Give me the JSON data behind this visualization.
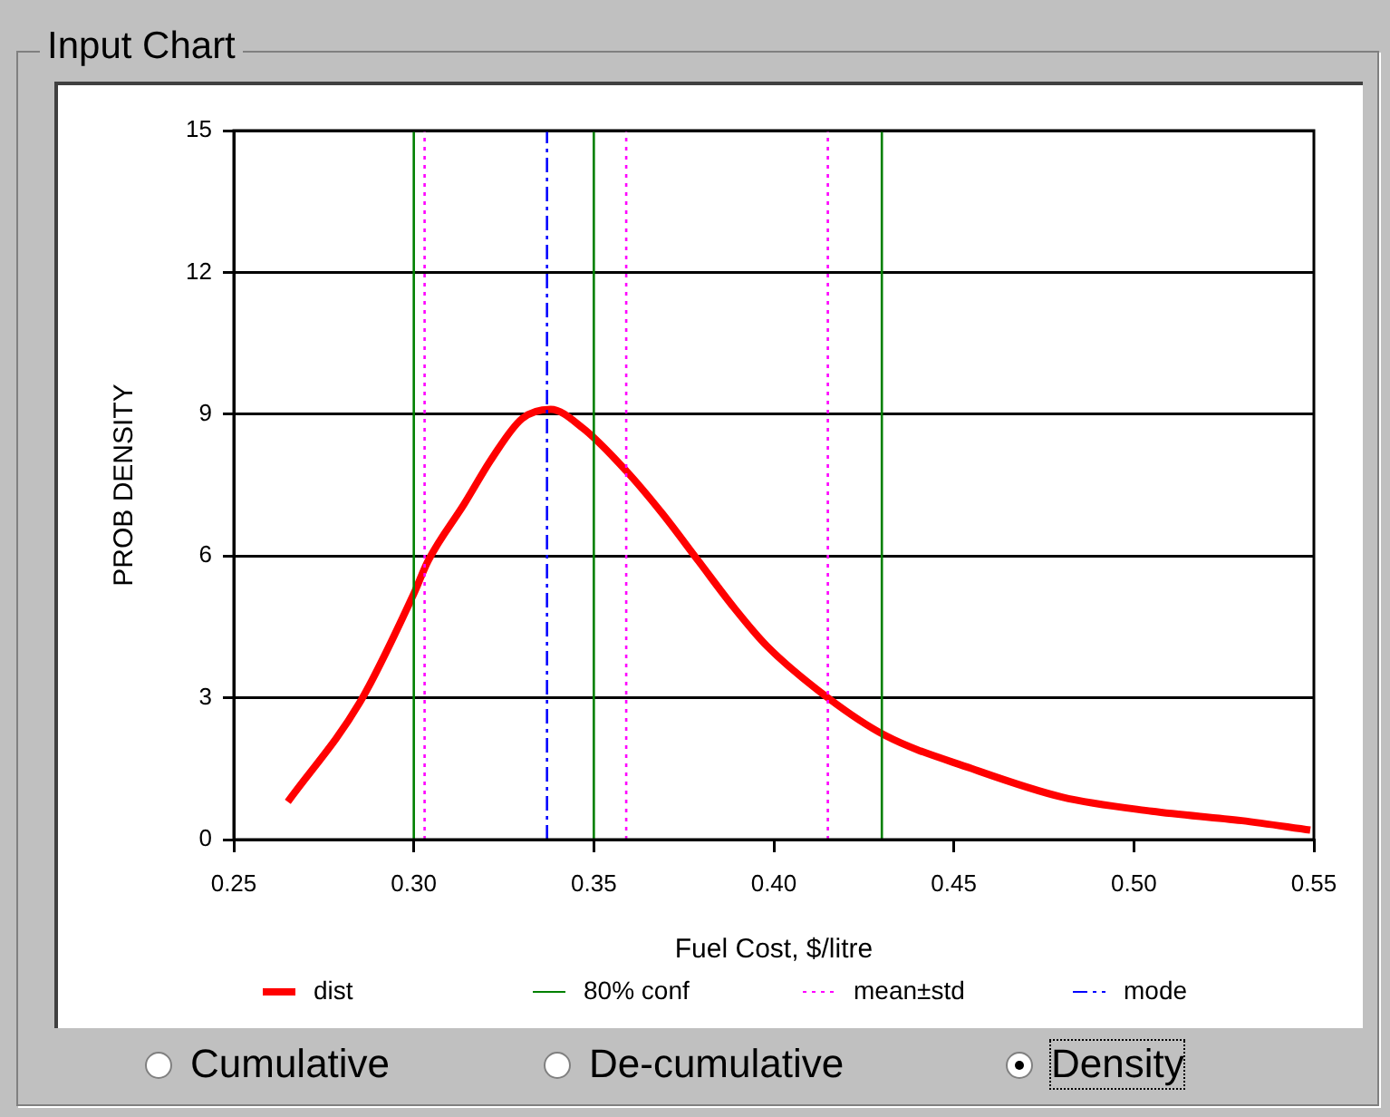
{
  "chart_data": {
    "type": "line",
    "title": "Input Chart",
    "xlabel": "Fuel Cost, $/litre",
    "ylabel": "PROB DENSITY",
    "x": [
      0.265,
      0.285,
      0.3,
      0.304,
      0.314,
      0.322,
      0.33,
      0.338,
      0.347,
      0.359,
      0.369,
      0.379,
      0.389,
      0.398,
      0.415,
      0.431,
      0.455,
      0.48,
      0.505,
      0.53,
      0.549
    ],
    "series": [
      {
        "name": "dist",
        "color": "#ff0000",
        "values": [
          0.8,
          2.9,
          5.2,
          5.9,
          7.1,
          8.1,
          8.9,
          9.1,
          8.7,
          7.8,
          6.9,
          5.9,
          4.9,
          4.1,
          3.0,
          2.2,
          1.5,
          0.9,
          0.6,
          0.4,
          0.2
        ]
      }
    ],
    "xlim": [
      0.25,
      0.55
    ],
    "xticks": [
      0.25,
      {
        "value": 0.3,
        "label": "0.30"
      },
      0.35,
      {
        "value": 0.4,
        "label": "0.40"
      },
      0.45,
      {
        "value": 0.5,
        "label": "0.50"
      },
      0.55
    ],
    "ylim": [
      0,
      15
    ],
    "yticks": [
      0,
      3,
      6,
      9,
      12,
      15
    ],
    "grid": "y",
    "legend": "bottom",
    "marker": "none",
    "line_style": "solid",
    "ref_lines": [
      {
        "axis": "x",
        "value": 0.3,
        "label": "80% conf",
        "color": "#008000",
        "line_style": "solid"
      },
      {
        "axis": "x",
        "value": 0.35,
        "color": "#008000",
        "line_style": "solid"
      },
      {
        "axis": "x",
        "value": 0.43,
        "color": "#008000",
        "line_style": "solid"
      },
      {
        "axis": "x",
        "value": 0.303,
        "label": "mean±std",
        "color": "#ff00ff",
        "line_style": "dotted"
      },
      {
        "axis": "x",
        "value": 0.359,
        "color": "#ff00ff",
        "line_style": "dotted"
      },
      {
        "axis": "x",
        "value": 0.415,
        "color": "#ff00ff",
        "line_style": "dotted"
      },
      {
        "axis": "x",
        "value": 0.337,
        "label": "mode",
        "color": "#0000ff",
        "line_style": "dashed"
      }
    ],
    "annotations": [
      "Cumulative",
      "De-cumulative",
      "Density"
    ]
  }
}
